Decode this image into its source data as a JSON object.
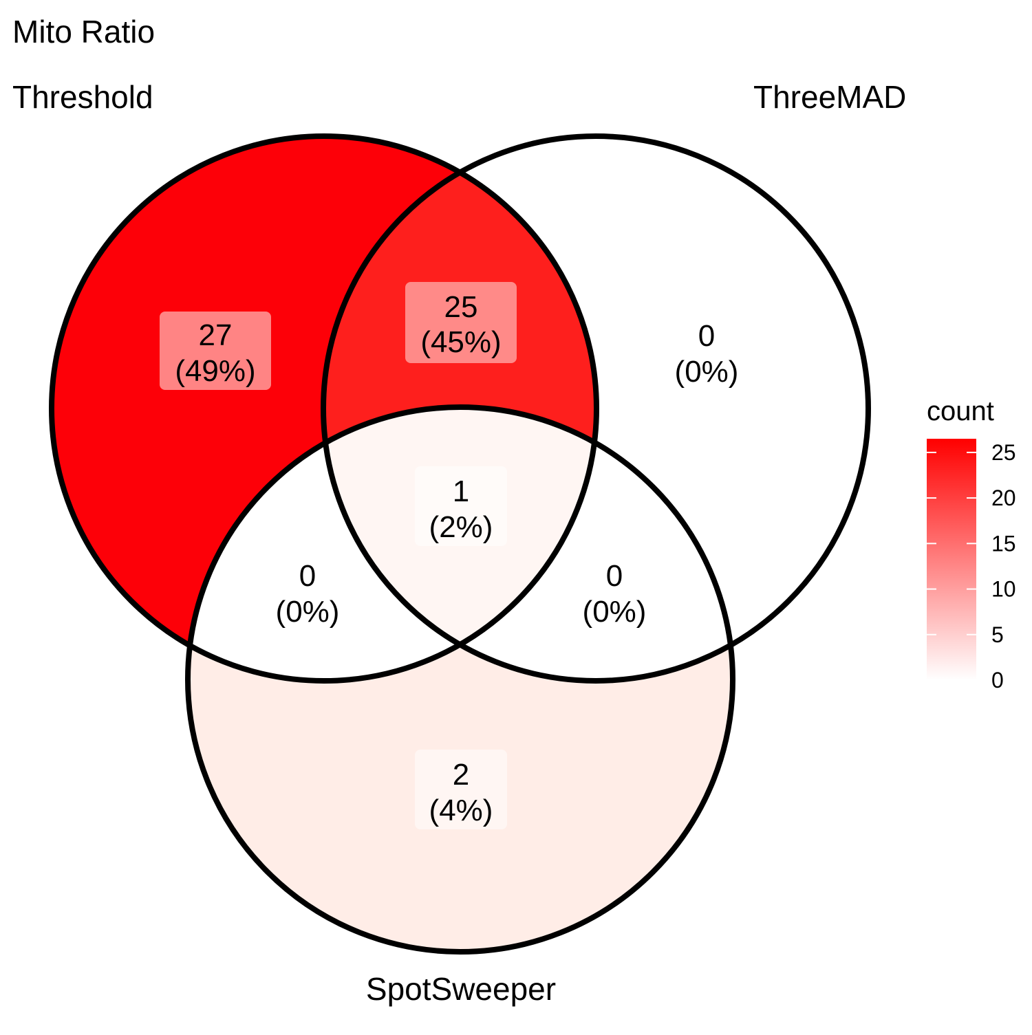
{
  "title": "Mito Ratio",
  "sets": [
    {
      "id": "A",
      "name": "Threshold"
    },
    {
      "id": "B",
      "name": "ThreeMAD"
    },
    {
      "id": "C",
      "name": "SpotSweeper"
    }
  ],
  "regions": [
    {
      "id": "A_only",
      "sets": [
        "Threshold"
      ],
      "count": 27,
      "percent": "(49%)",
      "fill": "#fd0008",
      "label_bg": "#ff8484"
    },
    {
      "id": "AB",
      "sets": [
        "Threshold",
        "ThreeMAD"
      ],
      "count": 25,
      "percent": "(45%)",
      "fill": "#fe1f1d",
      "label_bg": "#ff8a88"
    },
    {
      "id": "B_only",
      "sets": [
        "ThreeMAD"
      ],
      "count": 0,
      "percent": "(0%)",
      "fill": "#ffffff",
      "label_bg": "#ffffff"
    },
    {
      "id": "ABC",
      "sets": [
        "Threshold",
        "ThreeMAD",
        "SpotSweeper"
      ],
      "count": 1,
      "percent": "(2%)",
      "fill": "#fff6f3",
      "label_bg": "#fffbf9"
    },
    {
      "id": "AC",
      "sets": [
        "Threshold",
        "SpotSweeper"
      ],
      "count": 0,
      "percent": "(0%)",
      "fill": "#ffffff",
      "label_bg": "#ffffff"
    },
    {
      "id": "BC",
      "sets": [
        "ThreeMAD",
        "SpotSweeper"
      ],
      "count": 0,
      "percent": "(0%)",
      "fill": "#ffffff",
      "label_bg": "#ffffff"
    },
    {
      "id": "C_only",
      "sets": [
        "SpotSweeper"
      ],
      "count": 2,
      "percent": "(4%)",
      "fill": "#ffede7",
      "label_bg": "#fff6f3"
    }
  ],
  "legend": {
    "title": "count",
    "ticks": [
      "0",
      "5",
      "10",
      "15",
      "20",
      "25"
    ],
    "color_low": "#ffffff",
    "color_high": "#ff0000"
  }
}
